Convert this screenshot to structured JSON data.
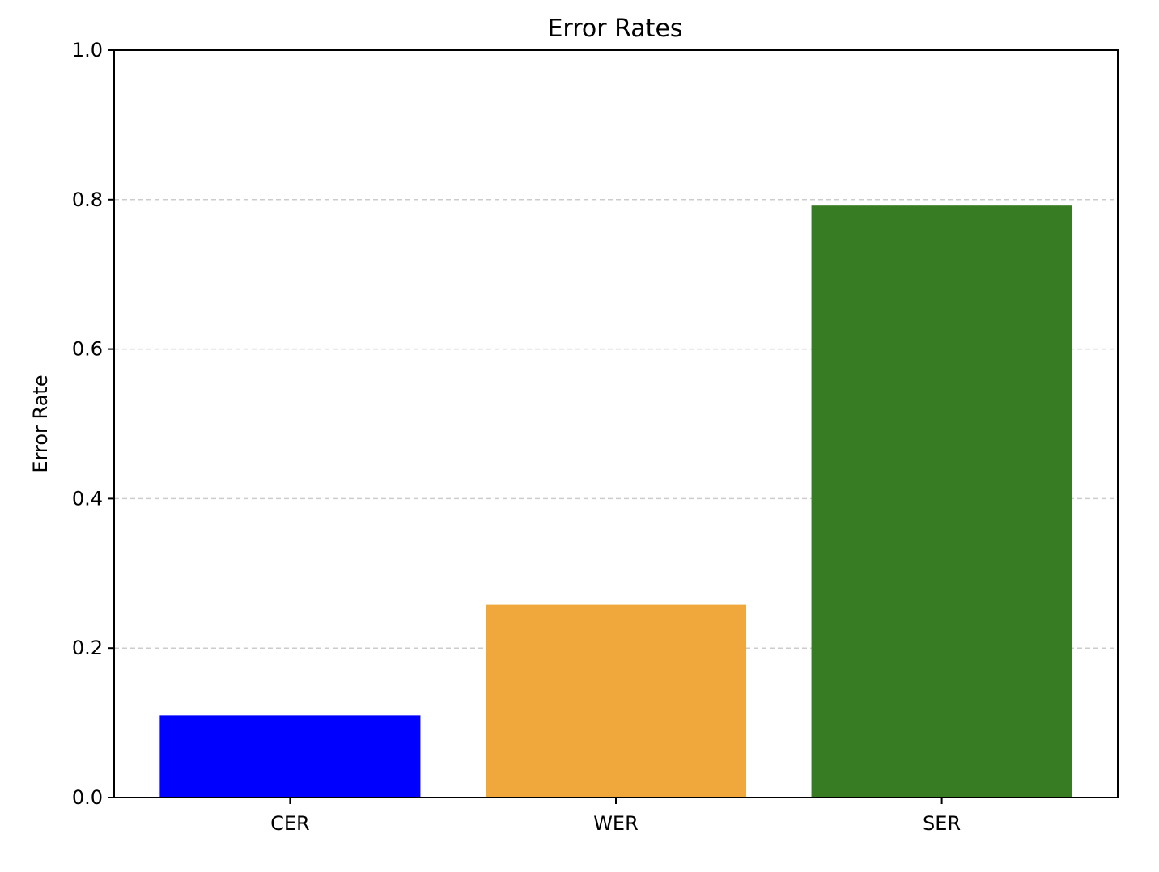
{
  "chart_data": {
    "type": "bar",
    "title": "Error Rates",
    "xlabel": "",
    "ylabel": "Error Rate",
    "categories": [
      "CER",
      "WER",
      "SER"
    ],
    "values": [
      0.11,
      0.258,
      0.792
    ],
    "colors": [
      "#0000ff",
      "#f0a83c",
      "#377b22"
    ],
    "ylim": [
      0,
      1.0
    ],
    "yticks": [
      "0.0",
      "0.2",
      "0.4",
      "0.6",
      "0.8",
      "1.0"
    ],
    "grid": "y-axis dashed",
    "grid_color": "#cccccc",
    "legend": "none"
  }
}
